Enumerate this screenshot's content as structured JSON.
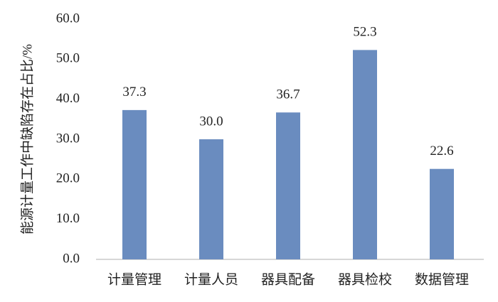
{
  "chart_data": {
    "type": "bar",
    "y_label": "能源计量工作中缺陷存在占比/%",
    "categories": [
      "计量管理",
      "计量人员",
      "器具配备",
      "器具检校",
      "数据管理"
    ],
    "values": [
      37.3,
      30.0,
      36.7,
      52.3,
      22.6
    ],
    "value_labels": [
      "37.3",
      "30.0",
      "36.7",
      "52.3",
      "22.6"
    ],
    "color": "#6a8cbf",
    "ylim": [
      0,
      60
    ],
    "yticks": [
      {
        "value": 0,
        "label": "0.0"
      },
      {
        "value": 10,
        "label": "10.0"
      },
      {
        "value": 20,
        "label": "20.0"
      },
      {
        "value": 30,
        "label": "30.0"
      },
      {
        "value": 40,
        "label": "40.0"
      },
      {
        "value": 50,
        "label": "50.0"
      },
      {
        "value": 60,
        "label": "60.0"
      }
    ],
    "grid": false
  }
}
